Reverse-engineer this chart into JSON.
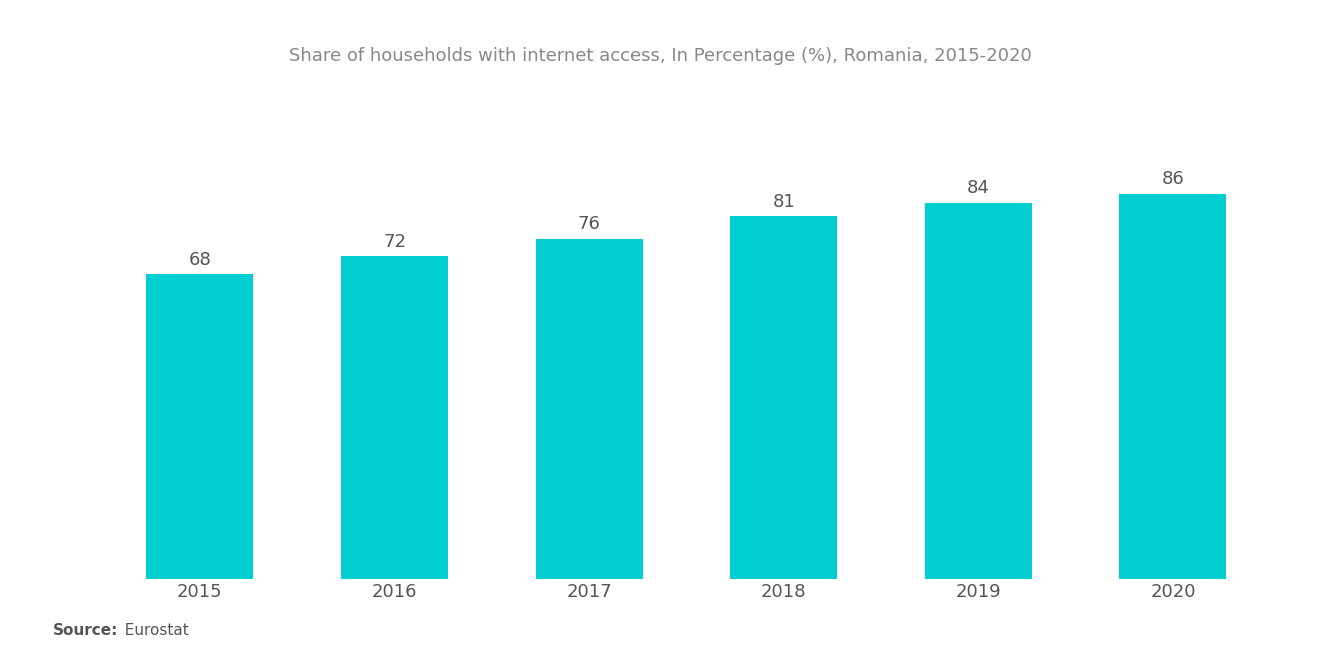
{
  "title": "Share of households with internet access, In Percentage (%), Romania, 2015-2020",
  "categories": [
    "2015",
    "2016",
    "2017",
    "2018",
    "2019",
    "2020"
  ],
  "values": [
    68,
    72,
    76,
    81,
    84,
    86
  ],
  "bar_color": "#00CED1",
  "background_color": "#FFFFFF",
  "title_color": "#888888",
  "label_color": "#555555",
  "title_fontsize": 13,
  "label_fontsize": 13,
  "tick_fontsize": 13,
  "source_bold": "Source:",
  "source_normal": "  Eurostat",
  "ylim": [
    0,
    110
  ],
  "bar_width": 0.55
}
